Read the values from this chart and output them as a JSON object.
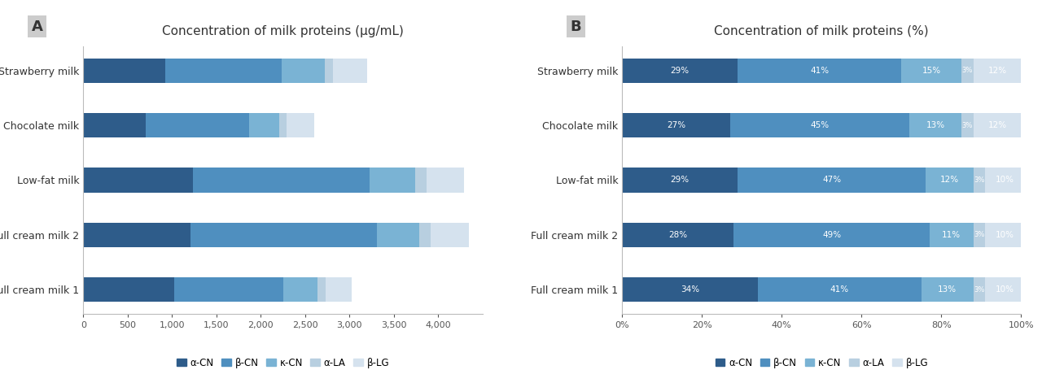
{
  "categories": [
    "Strawberry milk",
    "Chocolate milk",
    "Low-fat milk",
    "Full cream milk 2",
    "Full cream milk 1"
  ],
  "proteins": [
    "α-CN",
    "β-CN",
    "κ-CN",
    "α-LA",
    "β-LG"
  ],
  "colors": [
    "#2e5c8a",
    "#4f8fbf",
    "#7ab3d4",
    "#b8cfe0",
    "#d5e2ee"
  ],
  "abs_values": [
    [
      928,
      1312,
      480,
      96,
      384
    ],
    [
      702,
      1170,
      338,
      78,
      312
    ],
    [
      1232.5,
      1997.5,
      510,
      127.5,
      425
    ],
    [
      1204,
      2107,
      473,
      129,
      430
    ],
    [
      1020,
      1230,
      390,
      90,
      300
    ]
  ],
  "pct_values": [
    [
      29,
      41,
      15,
      3,
      12
    ],
    [
      27,
      45,
      13,
      3,
      12
    ],
    [
      29,
      47,
      12,
      3,
      10
    ],
    [
      28,
      49,
      11,
      3,
      10
    ],
    [
      34,
      41,
      13,
      3,
      10
    ]
  ],
  "title_a": "Concentration of milk proteins (µg/mL)",
  "title_b": "Concentration of milk proteins (%)",
  "label_a": "A",
  "label_b": "B",
  "xlim_a": [
    0,
    4500
  ],
  "xlim_b": [
    0,
    1.0
  ],
  "xticks_a": [
    0,
    500,
    1000,
    1500,
    2000,
    2500,
    3000,
    3500,
    4000
  ],
  "xtick_labels_a": [
    "0",
    "500",
    "1,000",
    "1,500",
    "2,000",
    "2,500",
    "3,000",
    "3,500",
    "4,000"
  ],
  "xticks_b": [
    0,
    0.2,
    0.4,
    0.6,
    0.8,
    1.0
  ],
  "xtick_labels_b": [
    "0%",
    "20%",
    "40%",
    "60%",
    "80%",
    "100%"
  ],
  "background_color": "#ffffff",
  "label_box_color": "#cccccc",
  "bar_height": 0.45
}
